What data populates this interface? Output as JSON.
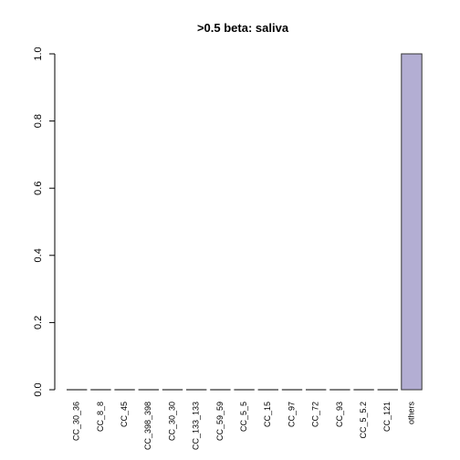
{
  "chart_data": {
    "type": "bar",
    "title": ">0.5 beta:  saliva",
    "xlabel": "",
    "ylabel": "",
    "ylim": [
      0,
      1
    ],
    "yticks": [
      0.0,
      0.2,
      0.4,
      0.6,
      0.8,
      1.0
    ],
    "ytick_labels": [
      "0.0",
      "0.2",
      "0.4",
      "0.6",
      "0.8",
      "1.0"
    ],
    "categories": [
      "CC_30_36",
      "CC_8_8",
      "CC_45",
      "CC_398_398",
      "CC_30_30",
      "CC_133_133",
      "CC_59_59",
      "CC_5_5",
      "CC_15",
      "CC_97",
      "CC_72",
      "CC_93",
      "CC_5_5.2",
      "CC_121",
      "others"
    ],
    "values": [
      0,
      0,
      0,
      0,
      0,
      0,
      0,
      0,
      0,
      0,
      0,
      0,
      0,
      0,
      1.0
    ],
    "bar_color": "#b3aed3",
    "bar_edge_color": "#333333",
    "grid": false,
    "legend": "none"
  }
}
